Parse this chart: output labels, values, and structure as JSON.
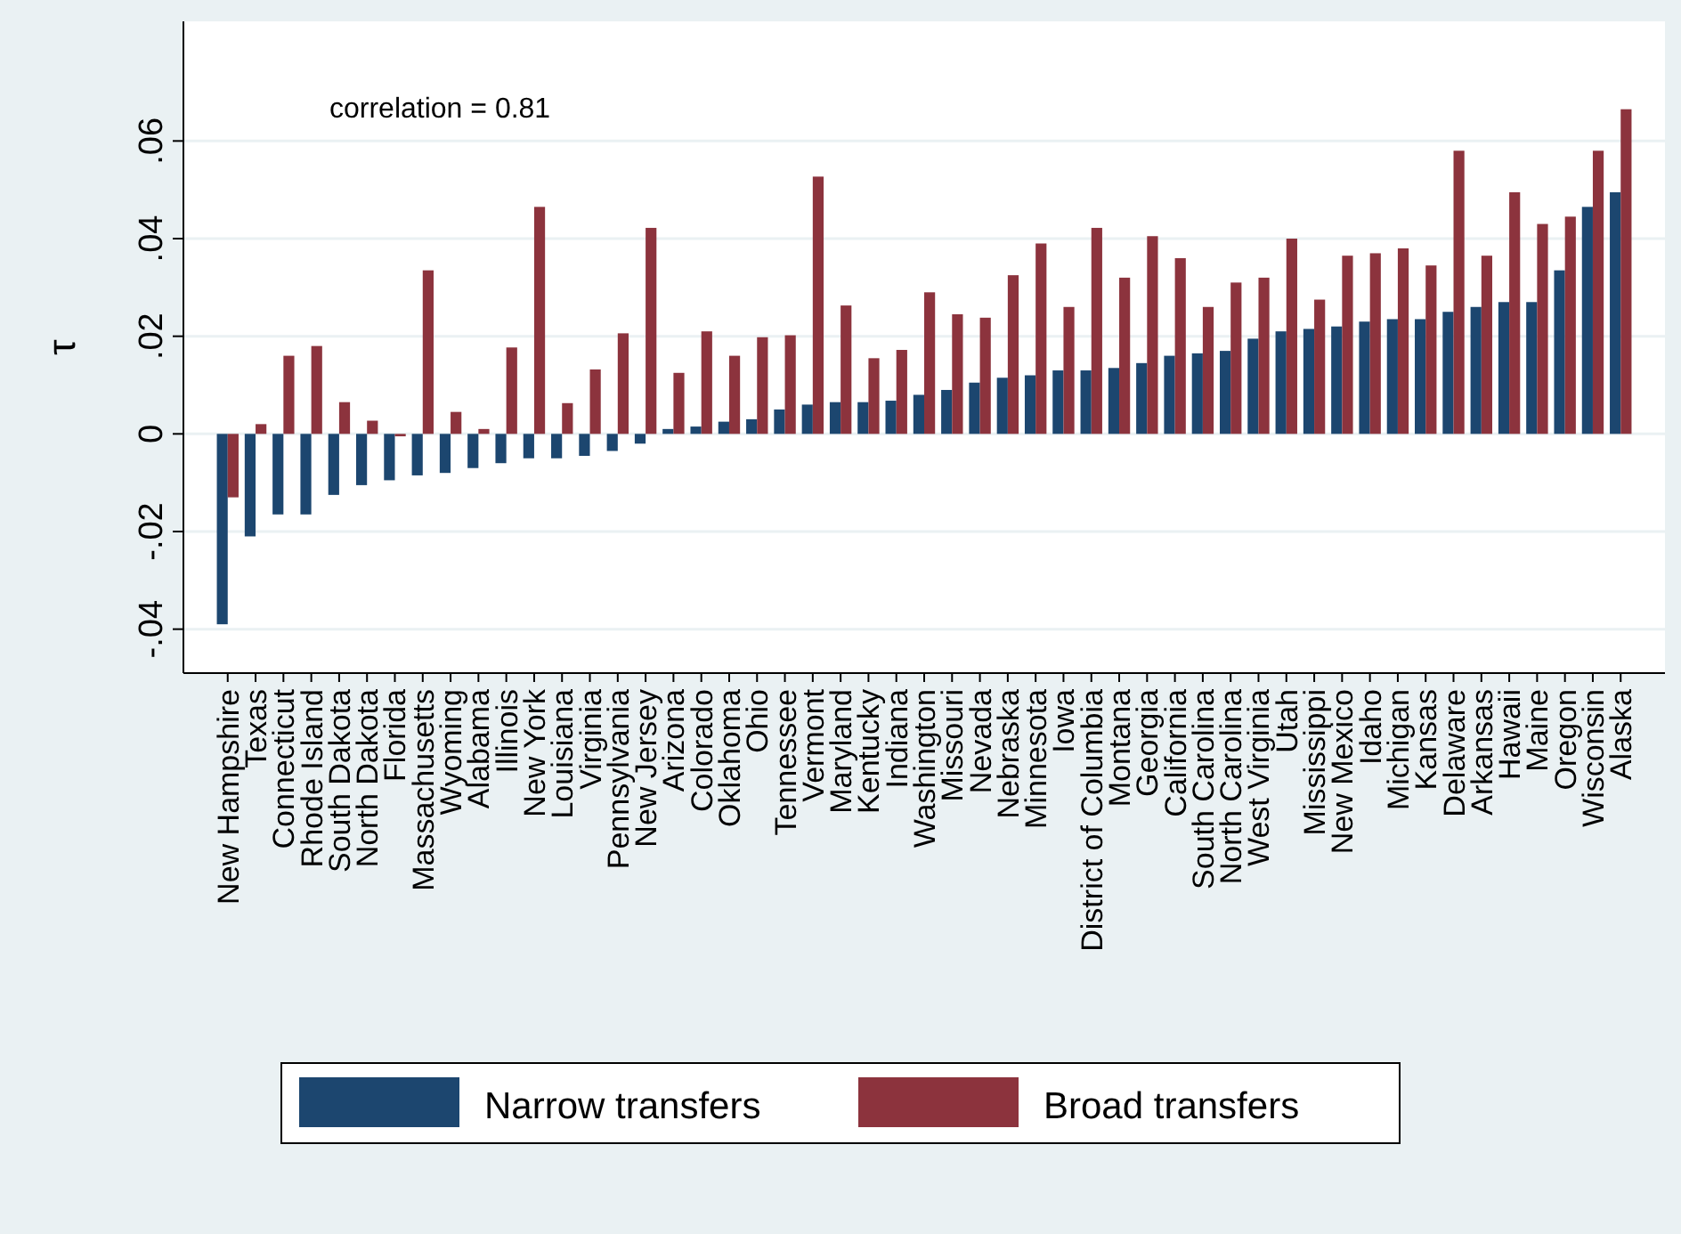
{
  "chart_data": {
    "type": "bar",
    "ylabel": "τ",
    "annotations": [
      "correlation = 0.81"
    ],
    "categories": [
      "New Hampshire",
      "Texas",
      "Connecticut",
      "Rhode Island",
      "South Dakota",
      "North Dakota",
      "Florida",
      "Massachusetts",
      "Wyoming",
      "Alabama",
      "Illinois",
      "New York",
      "Louisiana",
      "Virginia",
      "Pennsylvania",
      "New Jersey",
      "Arizona",
      "Colorado",
      "Oklahoma",
      "Ohio",
      "Tennessee",
      "Vermont",
      "Maryland",
      "Kentucky",
      "Indiana",
      "Washington",
      "Missouri",
      "Nevada",
      "Nebraska",
      "Minnesota",
      "Iowa",
      "District of Columbia",
      "Montana",
      "Georgia",
      "California",
      "South Carolina",
      "North Carolina",
      "West Virginia",
      "Utah",
      "Mississippi",
      "New Mexico",
      "Idaho",
      "Michigan",
      "Kansas",
      "Delaware",
      "Arkansas",
      "Hawaii",
      "Maine",
      "Oregon",
      "Wisconsin",
      "Alaska"
    ],
    "series": [
      {
        "name": "Narrow transfers",
        "color": "#1c466f",
        "values": [
          -0.039,
          -0.021,
          -0.0165,
          -0.0165,
          -0.0125,
          -0.0105,
          -0.0095,
          -0.0085,
          -0.008,
          -0.007,
          -0.006,
          -0.005,
          -0.005,
          -0.0045,
          -0.0035,
          -0.002,
          0.001,
          0.0015,
          0.0025,
          0.003,
          0.005,
          0.006,
          0.0065,
          0.0065,
          0.0068,
          0.008,
          0.009,
          0.0105,
          0.0115,
          0.012,
          0.013,
          0.013,
          0.0135,
          0.0145,
          0.016,
          0.0165,
          0.017,
          0.0195,
          0.021,
          0.0215,
          0.022,
          0.023,
          0.0235,
          0.0235,
          0.025,
          0.026,
          0.027,
          0.027,
          0.0335,
          0.0465,
          0.0495
        ]
      },
      {
        "name": "Broad transfers",
        "color": "#8c333d",
        "values": [
          -0.013,
          0.002,
          0.016,
          0.018,
          0.0065,
          0.0027,
          -0.0005,
          0.0335,
          0.0045,
          0.001,
          0.0177,
          0.0465,
          0.0063,
          0.0132,
          0.0206,
          0.0422,
          0.0125,
          0.021,
          0.016,
          0.0198,
          0.0202,
          0.0527,
          0.0263,
          0.0155,
          0.0172,
          0.029,
          0.0245,
          0.0238,
          0.0325,
          0.039,
          0.026,
          0.0422,
          0.032,
          0.0405,
          0.036,
          0.026,
          0.031,
          0.032,
          0.04,
          0.0275,
          0.0365,
          0.037,
          0.038,
          0.0345,
          0.058,
          0.0365,
          0.0495,
          0.043,
          0.0445,
          0.058,
          0.0665
        ]
      }
    ],
    "ylim": [
      -0.049,
      0.0845
    ],
    "yticks": [
      {
        "value": -0.04,
        "label": "-.04"
      },
      {
        "value": -0.02,
        "label": "-.02"
      },
      0,
      {
        "value": 0.02,
        "label": ".02"
      },
      {
        "value": 0.04,
        "label": ".04"
      },
      {
        "value": 0.06,
        "label": ".06"
      }
    ],
    "grid": "y",
    "legend": "bottom"
  }
}
